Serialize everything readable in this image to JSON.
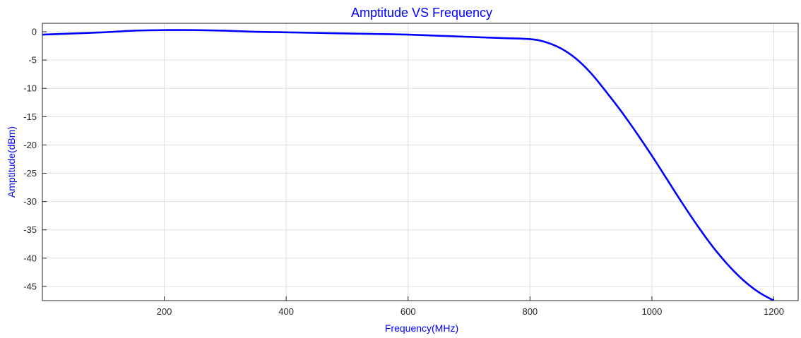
{
  "chart_data": {
    "type": "line",
    "title": "Amptitude VS Frequency",
    "xlabel": "Frequency(MHz)",
    "ylabel": "Amptitude(dBm)",
    "xlim": [
      0,
      1240
    ],
    "ylim": [
      -47.5,
      1.5
    ],
    "xticks": [
      200,
      400,
      600,
      800,
      1000,
      1200
    ],
    "yticks": [
      0,
      -5,
      -10,
      -15,
      -20,
      -25,
      -30,
      -35,
      -40,
      -45
    ],
    "grid": true,
    "series": [
      {
        "color": "#0000ff",
        "x": [
          0,
          50,
          100,
          150,
          200,
          250,
          300,
          350,
          400,
          450,
          500,
          550,
          600,
          650,
          700,
          750,
          800,
          825,
          850,
          875,
          900,
          925,
          950,
          975,
          1000,
          1025,
          1050,
          1075,
          1100,
          1125,
          1150,
          1175,
          1200
        ],
        "y": [
          -0.5,
          -0.3,
          -0.1,
          0.2,
          0.3,
          0.3,
          0.2,
          0.0,
          -0.1,
          -0.2,
          -0.3,
          -0.4,
          -0.5,
          -0.7,
          -0.9,
          -1.1,
          -1.3,
          -1.8,
          -2.9,
          -4.7,
          -7.3,
          -10.6,
          -14.1,
          -17.9,
          -21.9,
          -26.1,
          -30.3,
          -34.3,
          -38.0,
          -41.2,
          -43.9,
          -46.0,
          -47.5
        ]
      }
    ]
  },
  "colors": {
    "title": "#0000ff",
    "labels": "#0000ff",
    "line": "#0000ff",
    "grid": "#e0e0e0",
    "axes": "#262626"
  }
}
